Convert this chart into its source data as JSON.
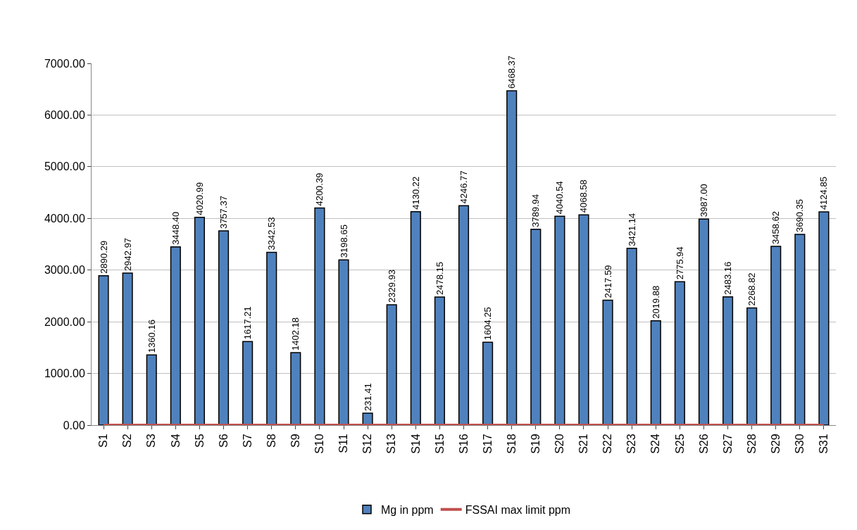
{
  "chart_data": {
    "type": "bar",
    "categories": [
      "S1",
      "S2",
      "S3",
      "S4",
      "S5",
      "S6",
      "S7",
      "S8",
      "S9",
      "S10",
      "S11",
      "S12",
      "S13",
      "S14",
      "S15",
      "S16",
      "S17",
      "S18",
      "S19",
      "S20",
      "S21",
      "S22",
      "S23",
      "S24",
      "S25",
      "S26",
      "S27",
      "S28",
      "S29",
      "S30",
      "S31"
    ],
    "series": [
      {
        "name": "Mg in ppm",
        "color": "#4f81bd",
        "values": [
          2890.29,
          2942.97,
          1360.16,
          3448.4,
          4020.99,
          3757.37,
          1617.21,
          3342.53,
          1402.18,
          4200.39,
          3198.65,
          231.41,
          2329.93,
          4130.22,
          2478.15,
          4246.77,
          1604.25,
          6468.37,
          3789.94,
          4040.54,
          4068.58,
          2417.59,
          3421.14,
          2019.88,
          2775.94,
          3987.0,
          2483.16,
          2268.82,
          3458.62,
          3690.35,
          4124.85
        ],
        "value_labels": [
          "2890.29",
          "2942.97",
          "1360.16",
          "3448.40",
          "4020.99",
          "3757.37",
          "1617.21",
          "3342.53",
          "1402.18",
          "4200.39",
          "3198.65",
          "231.41",
          "2329.93",
          "4130.22",
          "2478.15",
          "4246.77",
          "1604.25",
          "6468.37",
          "3789.94",
          "4040.54",
          "4068.58",
          "2417.59",
          "3421.14",
          "2019.88",
          "2775.94",
          "3987.00",
          "2483.16",
          "2268.82",
          "3458.62",
          "3690.35",
          "4124.85"
        ]
      },
      {
        "name": "FSSAI max limit ppm",
        "type": "line",
        "color": "#c0504d",
        "values": [
          0,
          0,
          0,
          0,
          0,
          0,
          0,
          0,
          0,
          0,
          0,
          0,
          0,
          0,
          0,
          0,
          0,
          0,
          0,
          0,
          0,
          0,
          0,
          0,
          0,
          0,
          0,
          0,
          0,
          0,
          0
        ]
      }
    ],
    "ylim": [
      0,
      7000
    ],
    "yticks": [
      {
        "value": 0,
        "label": "0.00"
      },
      {
        "value": 1000,
        "label": "1000.00"
      },
      {
        "value": 2000,
        "label": "2000.00"
      },
      {
        "value": 3000,
        "label": "3000.00"
      },
      {
        "value": 4000,
        "label": "4000.00"
      },
      {
        "value": 5000,
        "label": "5000.00"
      },
      {
        "value": 6000,
        "label": "6000.00"
      },
      {
        "value": 7000,
        "label": "7000.00"
      }
    ],
    "grid": "y",
    "legend": "bottom",
    "marker": "none"
  }
}
